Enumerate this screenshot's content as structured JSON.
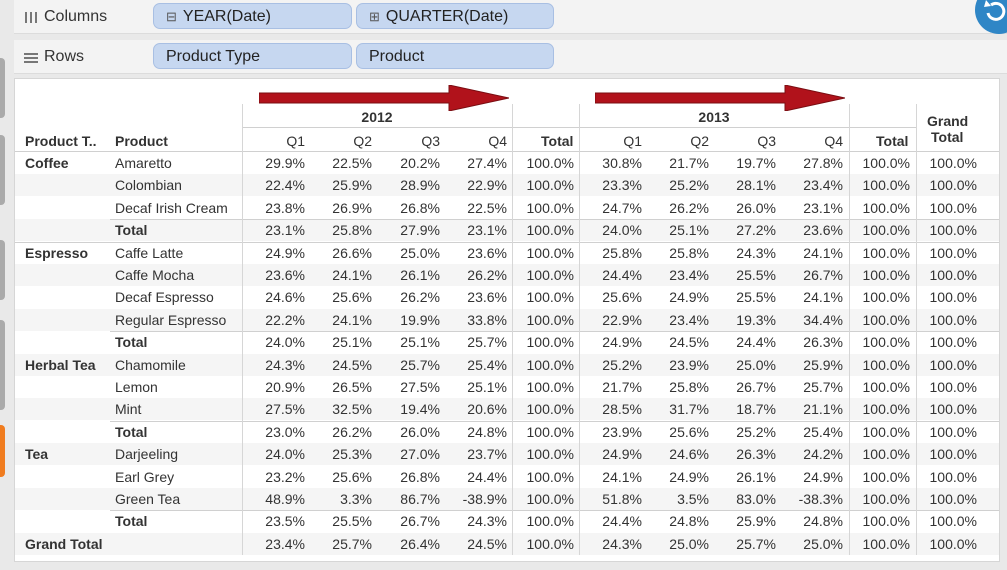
{
  "columns_shelf": {
    "label": "Columns",
    "pills": [
      {
        "prefix": "⊟",
        "label": "YEAR(Date)"
      },
      {
        "prefix": "⊞",
        "label": "QUARTER(Date)"
      }
    ]
  },
  "rows_shelf": {
    "label": "Rows",
    "pills": [
      {
        "label": "Product Type"
      },
      {
        "label": "Product"
      }
    ]
  },
  "table": {
    "headers": {
      "product_type": "Product T..",
      "product": "Product",
      "years": [
        "2012",
        "2013"
      ],
      "quarters": [
        "Q1",
        "Q2",
        "Q3",
        "Q4"
      ],
      "total": "Total",
      "grand_total": [
        "Grand",
        "Total"
      ]
    },
    "groups": [
      {
        "type": "Coffee",
        "rows": [
          {
            "product": "Amaretto",
            "v": [
              "29.9%",
              "22.5%",
              "20.2%",
              "27.4%",
              "100.0%",
              "30.8%",
              "21.7%",
              "19.7%",
              "27.8%",
              "100.0%",
              "100.0%"
            ]
          },
          {
            "product": "Colombian",
            "v": [
              "22.4%",
              "25.9%",
              "28.9%",
              "22.9%",
              "100.0%",
              "23.3%",
              "25.2%",
              "28.1%",
              "23.4%",
              "100.0%",
              "100.0%"
            ]
          },
          {
            "product": "Decaf Irish Cream",
            "v": [
              "23.8%",
              "26.9%",
              "26.8%",
              "22.5%",
              "100.0%",
              "24.7%",
              "26.2%",
              "26.0%",
              "23.1%",
              "100.0%",
              "100.0%"
            ]
          },
          {
            "product": "Total",
            "total": true,
            "v": [
              "23.1%",
              "25.8%",
              "27.9%",
              "23.1%",
              "100.0%",
              "24.0%",
              "25.1%",
              "27.2%",
              "23.6%",
              "100.0%",
              "100.0%"
            ]
          }
        ]
      },
      {
        "type": "Espresso",
        "rows": [
          {
            "product": "Caffe Latte",
            "v": [
              "24.9%",
              "26.6%",
              "25.0%",
              "23.6%",
              "100.0%",
              "25.8%",
              "25.8%",
              "24.3%",
              "24.1%",
              "100.0%",
              "100.0%"
            ]
          },
          {
            "product": "Caffe Mocha",
            "v": [
              "23.6%",
              "24.1%",
              "26.1%",
              "26.2%",
              "100.0%",
              "24.4%",
              "23.4%",
              "25.5%",
              "26.7%",
              "100.0%",
              "100.0%"
            ]
          },
          {
            "product": "Decaf Espresso",
            "v": [
              "24.6%",
              "25.6%",
              "26.2%",
              "23.6%",
              "100.0%",
              "25.6%",
              "24.9%",
              "25.5%",
              "24.1%",
              "100.0%",
              "100.0%"
            ]
          },
          {
            "product": "Regular Espresso",
            "v": [
              "22.2%",
              "24.1%",
              "19.9%",
              "33.8%",
              "100.0%",
              "22.9%",
              "23.4%",
              "19.3%",
              "34.4%",
              "100.0%",
              "100.0%"
            ]
          },
          {
            "product": "Total",
            "total": true,
            "v": [
              "24.0%",
              "25.1%",
              "25.1%",
              "25.7%",
              "100.0%",
              "24.9%",
              "24.5%",
              "24.4%",
              "26.3%",
              "100.0%",
              "100.0%"
            ]
          }
        ]
      },
      {
        "type": "Herbal Tea",
        "rows": [
          {
            "product": "Chamomile",
            "v": [
              "24.3%",
              "24.5%",
              "25.7%",
              "25.4%",
              "100.0%",
              "25.2%",
              "23.9%",
              "25.0%",
              "25.9%",
              "100.0%",
              "100.0%"
            ]
          },
          {
            "product": "Lemon",
            "v": [
              "20.9%",
              "26.5%",
              "27.5%",
              "25.1%",
              "100.0%",
              "21.7%",
              "25.8%",
              "26.7%",
              "25.7%",
              "100.0%",
              "100.0%"
            ]
          },
          {
            "product": "Mint",
            "v": [
              "27.5%",
              "32.5%",
              "19.4%",
              "20.6%",
              "100.0%",
              "28.5%",
              "31.7%",
              "18.7%",
              "21.1%",
              "100.0%",
              "100.0%"
            ]
          },
          {
            "product": "Total",
            "total": true,
            "v": [
              "23.0%",
              "26.2%",
              "26.0%",
              "24.8%",
              "100.0%",
              "23.9%",
              "25.6%",
              "25.2%",
              "25.4%",
              "100.0%",
              "100.0%"
            ]
          }
        ]
      },
      {
        "type": "Tea",
        "rows": [
          {
            "product": "Darjeeling",
            "v": [
              "24.0%",
              "25.3%",
              "27.0%",
              "23.7%",
              "100.0%",
              "24.9%",
              "24.6%",
              "26.3%",
              "24.2%",
              "100.0%",
              "100.0%"
            ]
          },
          {
            "product": "Earl Grey",
            "v": [
              "23.2%",
              "25.6%",
              "26.8%",
              "24.4%",
              "100.0%",
              "24.1%",
              "24.9%",
              "26.1%",
              "24.9%",
              "100.0%",
              "100.0%"
            ]
          },
          {
            "product": "Green Tea",
            "v": [
              "48.9%",
              "3.3%",
              "86.7%",
              "-38.9%",
              "100.0%",
              "51.8%",
              "3.5%",
              "83.0%",
              "-38.3%",
              "100.0%",
              "100.0%"
            ]
          },
          {
            "product": "Total",
            "total": true,
            "v": [
              "23.5%",
              "25.5%",
              "26.7%",
              "24.3%",
              "100.0%",
              "24.4%",
              "24.8%",
              "25.9%",
              "24.8%",
              "100.0%",
              "100.0%"
            ]
          }
        ]
      }
    ],
    "grand_total_row": {
      "label": "Grand Total",
      "v": [
        "23.4%",
        "25.7%",
        "26.4%",
        "24.5%",
        "100.0%",
        "24.3%",
        "25.0%",
        "25.7%",
        "25.0%",
        "100.0%",
        "100.0%"
      ]
    }
  },
  "colors": {
    "pill_bg": "#c6d7f0",
    "arrow": "#b1121b",
    "refresh_button": "#2f86c6",
    "left_edge_accent": "#f07c1f"
  }
}
